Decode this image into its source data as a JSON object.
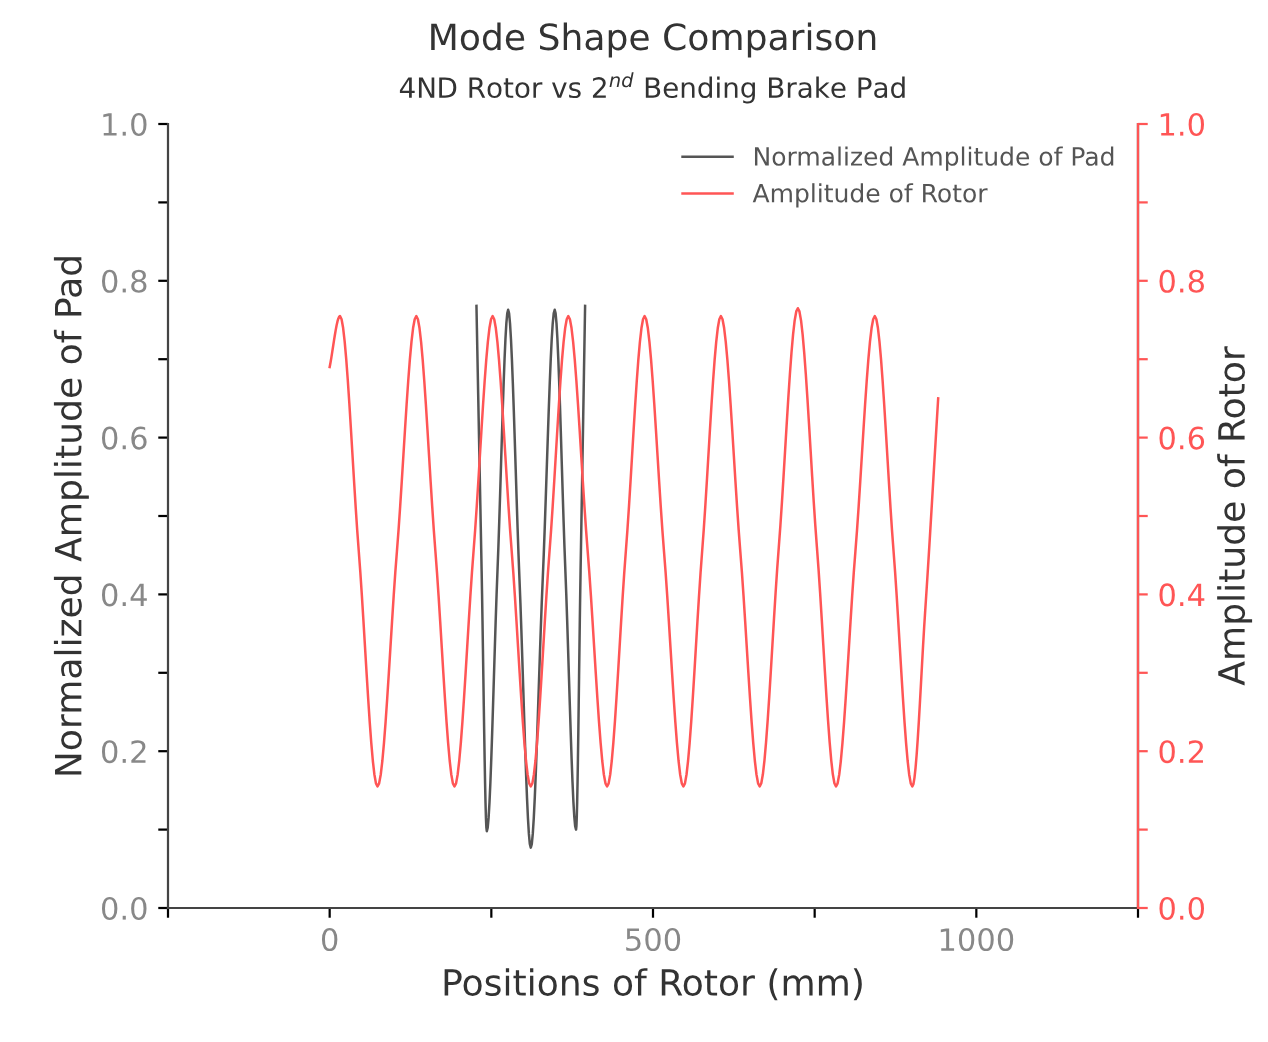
{
  "chart_data": {
    "type": "line",
    "title": "Mode Shape Comparison",
    "subtitle": "4ND Rotor vs 2$^{nd}$ Bending Brake Pad",
    "xlabel": "Positions of Rotor (mm)",
    "ylabel": "Normalized Amplitude of Pad",
    "y2label": "Amplitude of Rotor",
    "xlim": [
      -250,
      1250
    ],
    "xticks": [
      {
        "value": -250,
        "label": null
      },
      0,
      {
        "value": 250,
        "label": null
      },
      500,
      {
        "value": 750,
        "label": null
      },
      1000,
      {
        "value": 1250,
        "label": null
      }
    ],
    "ylim": [
      0,
      1
    ],
    "yticks": [
      {
        "value": 0,
        "label": "0.0"
      },
      {
        "value": 0.1,
        "label": null
      },
      0.2,
      {
        "value": 0.3,
        "label": null
      },
      0.4,
      {
        "value": 0.5,
        "label": null
      },
      0.6,
      {
        "value": 0.7,
        "label": null
      },
      0.8,
      {
        "value": 0.9,
        "label": null
      },
      {
        "value": 1,
        "label": "1.0"
      }
    ],
    "y2lim": [
      0,
      1
    ],
    "y2ticks": [
      {
        "value": 0,
        "label": "0.0"
      },
      {
        "value": 0.1,
        "label": null
      },
      0.2,
      {
        "value": 0.3,
        "label": null
      },
      0.4,
      {
        "value": 0.5,
        "label": null
      },
      0.6,
      {
        "value": 0.7,
        "label": null
      },
      0.8,
      {
        "value": 0.9,
        "label": null
      },
      {
        "value": 1,
        "label": "1.0"
      }
    ],
    "legend": "top right",
    "grid": false,
    "series": [
      {
        "name": "Normalized Amplitude of Pad",
        "color": "#555555",
        "x": [
          227,
          235,
          243,
          259.5,
          276,
          293.5,
          311,
          329.5,
          348,
          364.5,
          381,
          388,
          395
        ],
        "values": [
          0.768,
          0.43,
          0.098,
          0.43,
          0.763,
          0.42,
          0.077,
          0.42,
          0.763,
          0.43,
          0.1,
          0.43,
          0.768
        ]
      },
      {
        "name": "Amplitude of Rotor",
        "color": "#ff5555",
        "axis": "y2",
        "x": [
          0,
          16,
          45,
          74,
          104,
          134,
          163.5,
          193,
          222.5,
          252,
          281.5,
          311,
          340,
          369,
          399,
          429,
          458,
          487,
          517,
          547,
          576,
          605,
          635,
          665,
          694.5,
          724,
          753.5,
          783,
          813,
          843,
          872,
          901,
          921,
          941
        ],
        "values": [
          0.69,
          0.755,
          0.455,
          0.155,
          0.455,
          0.755,
          0.455,
          0.155,
          0.455,
          0.755,
          0.455,
          0.155,
          0.455,
          0.755,
          0.455,
          0.155,
          0.455,
          0.755,
          0.455,
          0.155,
          0.455,
          0.755,
          0.455,
          0.155,
          0.46,
          0.765,
          0.46,
          0.155,
          0.455,
          0.755,
          0.455,
          0.155,
          0.38,
          0.65
        ]
      }
    ]
  }
}
